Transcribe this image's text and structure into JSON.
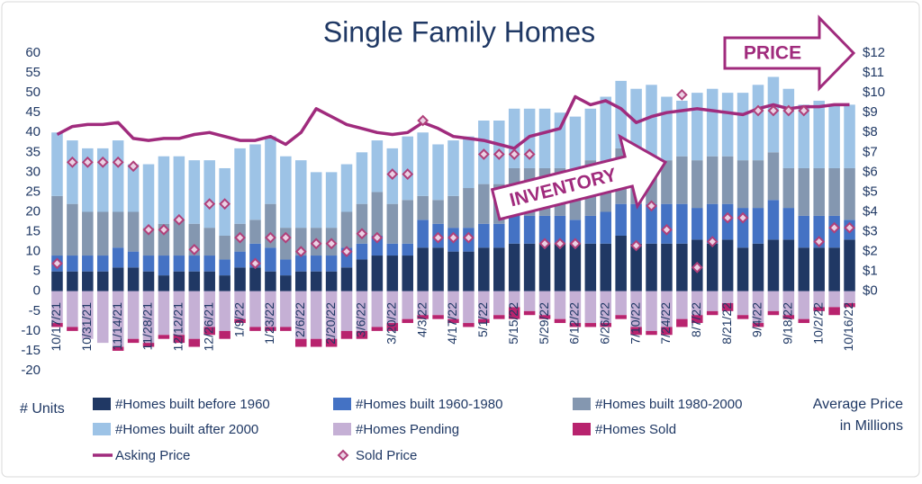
{
  "chart_data": {
    "type": "bar",
    "title": "Single Family Homes",
    "y_label": "# Units",
    "y2_label": [
      "Average Price",
      "in Millions"
    ],
    "annotations": [
      "PRICE",
      "INVENTORY"
    ],
    "categories": [
      "10/17/21",
      null,
      "10/31/21",
      null,
      "11/14/21",
      null,
      "11/28/21",
      null,
      "12/12/21",
      null,
      "12/26/21",
      null,
      "1/9/22",
      null,
      "1/23/22",
      null,
      "2/6/22",
      null,
      "2/20/22",
      null,
      "3/6/22",
      null,
      "3/20/22",
      null,
      "4/3/22",
      null,
      "4/17/22",
      null,
      "5/1/22",
      null,
      "5/15/22",
      null,
      "5/29/22",
      null,
      "6/12/22",
      null,
      "6/26/22",
      null,
      "7/10/22",
      null,
      "7/24/22",
      null,
      "8/7/22",
      null,
      "8/21/22",
      null,
      "9/4/22",
      null,
      "9/18/22",
      null,
      "10/2/22",
      null,
      "10/16/22"
    ],
    "ylim": [
      -20,
      60
    ],
    "yticks": [
      -20,
      -15,
      -10,
      -5,
      0,
      5,
      10,
      15,
      20,
      25,
      30,
      35,
      40,
      45,
      50,
      55,
      60
    ],
    "y2lim": [
      -4,
      12
    ],
    "y2ticks": [
      {
        "value": 0,
        "label": "$0"
      },
      {
        "value": 1,
        "label": "$1"
      },
      {
        "value": 2,
        "label": "$2"
      },
      {
        "value": 3,
        "label": "$3"
      },
      {
        "value": 4,
        "label": "$4"
      },
      {
        "value": 5,
        "label": "$5"
      },
      {
        "value": 6,
        "label": "$6"
      },
      {
        "value": 7,
        "label": "$7"
      },
      {
        "value": 8,
        "label": "$8"
      },
      {
        "value": 9,
        "label": "$9"
      },
      {
        "value": 10,
        "label": "$10"
      },
      {
        "value": 11,
        "label": "$11"
      },
      {
        "value": 12,
        "label": "$12"
      }
    ],
    "grid": false,
    "series": [
      {
        "name": "#Homes built before 1960",
        "kind": "bar",
        "color": "#203864",
        "values": [
          5,
          5,
          5,
          5,
          6,
          6,
          5,
          4,
          5,
          5,
          5,
          4,
          6,
          6,
          5,
          4,
          5,
          5,
          5,
          6,
          8,
          9,
          9,
          9,
          11,
          11,
          10,
          10,
          11,
          11,
          12,
          12,
          12,
          12,
          12,
          12,
          12,
          14,
          12,
          12,
          12,
          12,
          13,
          12,
          13,
          11,
          12,
          13,
          13,
          11,
          11,
          11,
          13
        ]
      },
      {
        "name": "#Homes built 1960-1980",
        "kind": "bar",
        "color": "#4472c4",
        "values": [
          4,
          4,
          4,
          4,
          5,
          4,
          4,
          5,
          4,
          4,
          4,
          4,
          4,
          6,
          6,
          4,
          4,
          4,
          4,
          5,
          4,
          5,
          3,
          3,
          7,
          6,
          6,
          6,
          6,
          6,
          7,
          7,
          7,
          7,
          6,
          7,
          8,
          8,
          10,
          10,
          10,
          10,
          8,
          10,
          9,
          10,
          9,
          10,
          8,
          8,
          8,
          8,
          5
        ]
      },
      {
        "name": "#Homes built 1980-2000",
        "kind": "bar",
        "color": "#8497b0",
        "values": [
          15,
          13,
          11,
          11,
          9,
          10,
          7,
          8,
          9,
          8,
          7,
          6,
          7,
          6,
          11,
          8,
          7,
          7,
          7,
          9,
          10,
          11,
          10,
          11,
          6,
          6,
          8,
          10,
          10,
          10,
          12,
          12,
          12,
          12,
          10,
          14,
          12,
          14,
          12,
          11,
          11,
          12,
          12,
          12,
          12,
          12,
          12,
          12,
          10,
          12,
          12,
          12,
          13
        ]
      },
      {
        "name": "#Homes built after 2000",
        "kind": "bar",
        "color": "#9dc3e6",
        "values": [
          16,
          16,
          16,
          16,
          18,
          12,
          16,
          17,
          16,
          16,
          17,
          17,
          19,
          19,
          17,
          18,
          17,
          14,
          14,
          12,
          13,
          13,
          14,
          16,
          16,
          14,
          14,
          13,
          16,
          16,
          15,
          15,
          15,
          14,
          16,
          13,
          17,
          17,
          17,
          19,
          16,
          14,
          17,
          17,
          16,
          17,
          19,
          19,
          20,
          16,
          17,
          16,
          16
        ]
      },
      {
        "name": "#Homes Pending",
        "kind": "bar",
        "color": "#c5b0d5",
        "values": [
          -8,
          -9,
          -12,
          -13,
          -14,
          -12,
          -13,
          -11,
          -11,
          -12,
          -9,
          -10,
          -7,
          -9,
          -9,
          -9,
          -12,
          -12,
          -12,
          -10,
          -10,
          -9,
          -8,
          -7,
          -6,
          -6,
          -7,
          -8,
          -7,
          -6,
          -4,
          -5,
          -6,
          -7,
          -8,
          -8,
          -8,
          -6,
          -9,
          -10,
          -9,
          -7,
          -6,
          -5,
          -3,
          -6,
          -8,
          -5,
          -6,
          -7,
          -4,
          -4,
          -3
        ]
      },
      {
        "name": "#Homes Sold",
        "kind": "bar",
        "color": "#b8236e",
        "values": [
          -1,
          -1,
          0,
          0,
          -1,
          -1,
          -1,
          -1,
          -2,
          -2,
          -2,
          -2,
          -1,
          -1,
          -1,
          -1,
          -2,
          -2,
          -2,
          -2,
          -2,
          -1,
          -2,
          -1,
          -1,
          -1,
          -1,
          -1,
          -1,
          -1,
          -3,
          -1,
          -1,
          -1,
          -1,
          -1,
          -1,
          -1,
          -2,
          -1,
          -2,
          -2,
          -2,
          -1,
          -2,
          -1,
          -1,
          -1,
          -1,
          -1,
          -1,
          -2,
          -1
        ]
      },
      {
        "name": "Asking Price",
        "kind": "line",
        "axis": "y2",
        "color": "#a02b7d",
        "values": [
          7.9,
          8.3,
          8.4,
          8.4,
          8.5,
          7.7,
          7.6,
          7.7,
          7.7,
          7.9,
          8.0,
          7.8,
          7.6,
          7.6,
          7.8,
          7.4,
          8.0,
          9.2,
          8.8,
          8.4,
          8.2,
          8.0,
          7.9,
          8.0,
          8.5,
          8.2,
          7.8,
          7.7,
          7.6,
          7.4,
          7.2,
          7.8,
          8.0,
          8.2,
          9.8,
          9.4,
          9.6,
          9.2,
          8.5,
          8.8,
          9.0,
          9.1,
          9.2,
          9.1,
          9.0,
          8.9,
          9.2,
          9.4,
          9.2,
          9.3,
          9.3,
          9.4,
          9.4
        ]
      },
      {
        "name": "Sold Price",
        "kind": "scatter",
        "axis": "y2",
        "color": "#b0407a",
        "values": [
          1.4,
          6.5,
          6.5,
          6.5,
          6.5,
          6.3,
          3.1,
          3.1,
          3.6,
          2.1,
          4.4,
          4.4,
          2.7,
          1.4,
          2.7,
          2.7,
          2.0,
          2.4,
          2.4,
          2.0,
          2.9,
          2.7,
          5.9,
          5.9,
          8.6,
          2.7,
          2.7,
          2.7,
          6.9,
          6.9,
          6.9,
          6.9,
          2.4,
          2.4,
          2.4,
          null,
          null,
          null,
          2.3,
          4.3,
          3.1,
          9.9,
          1.2,
          2.5,
          3.7,
          3.7,
          9.1,
          9.1,
          9.1,
          9.1,
          2.5,
          3.2,
          3.2
        ]
      }
    ]
  }
}
